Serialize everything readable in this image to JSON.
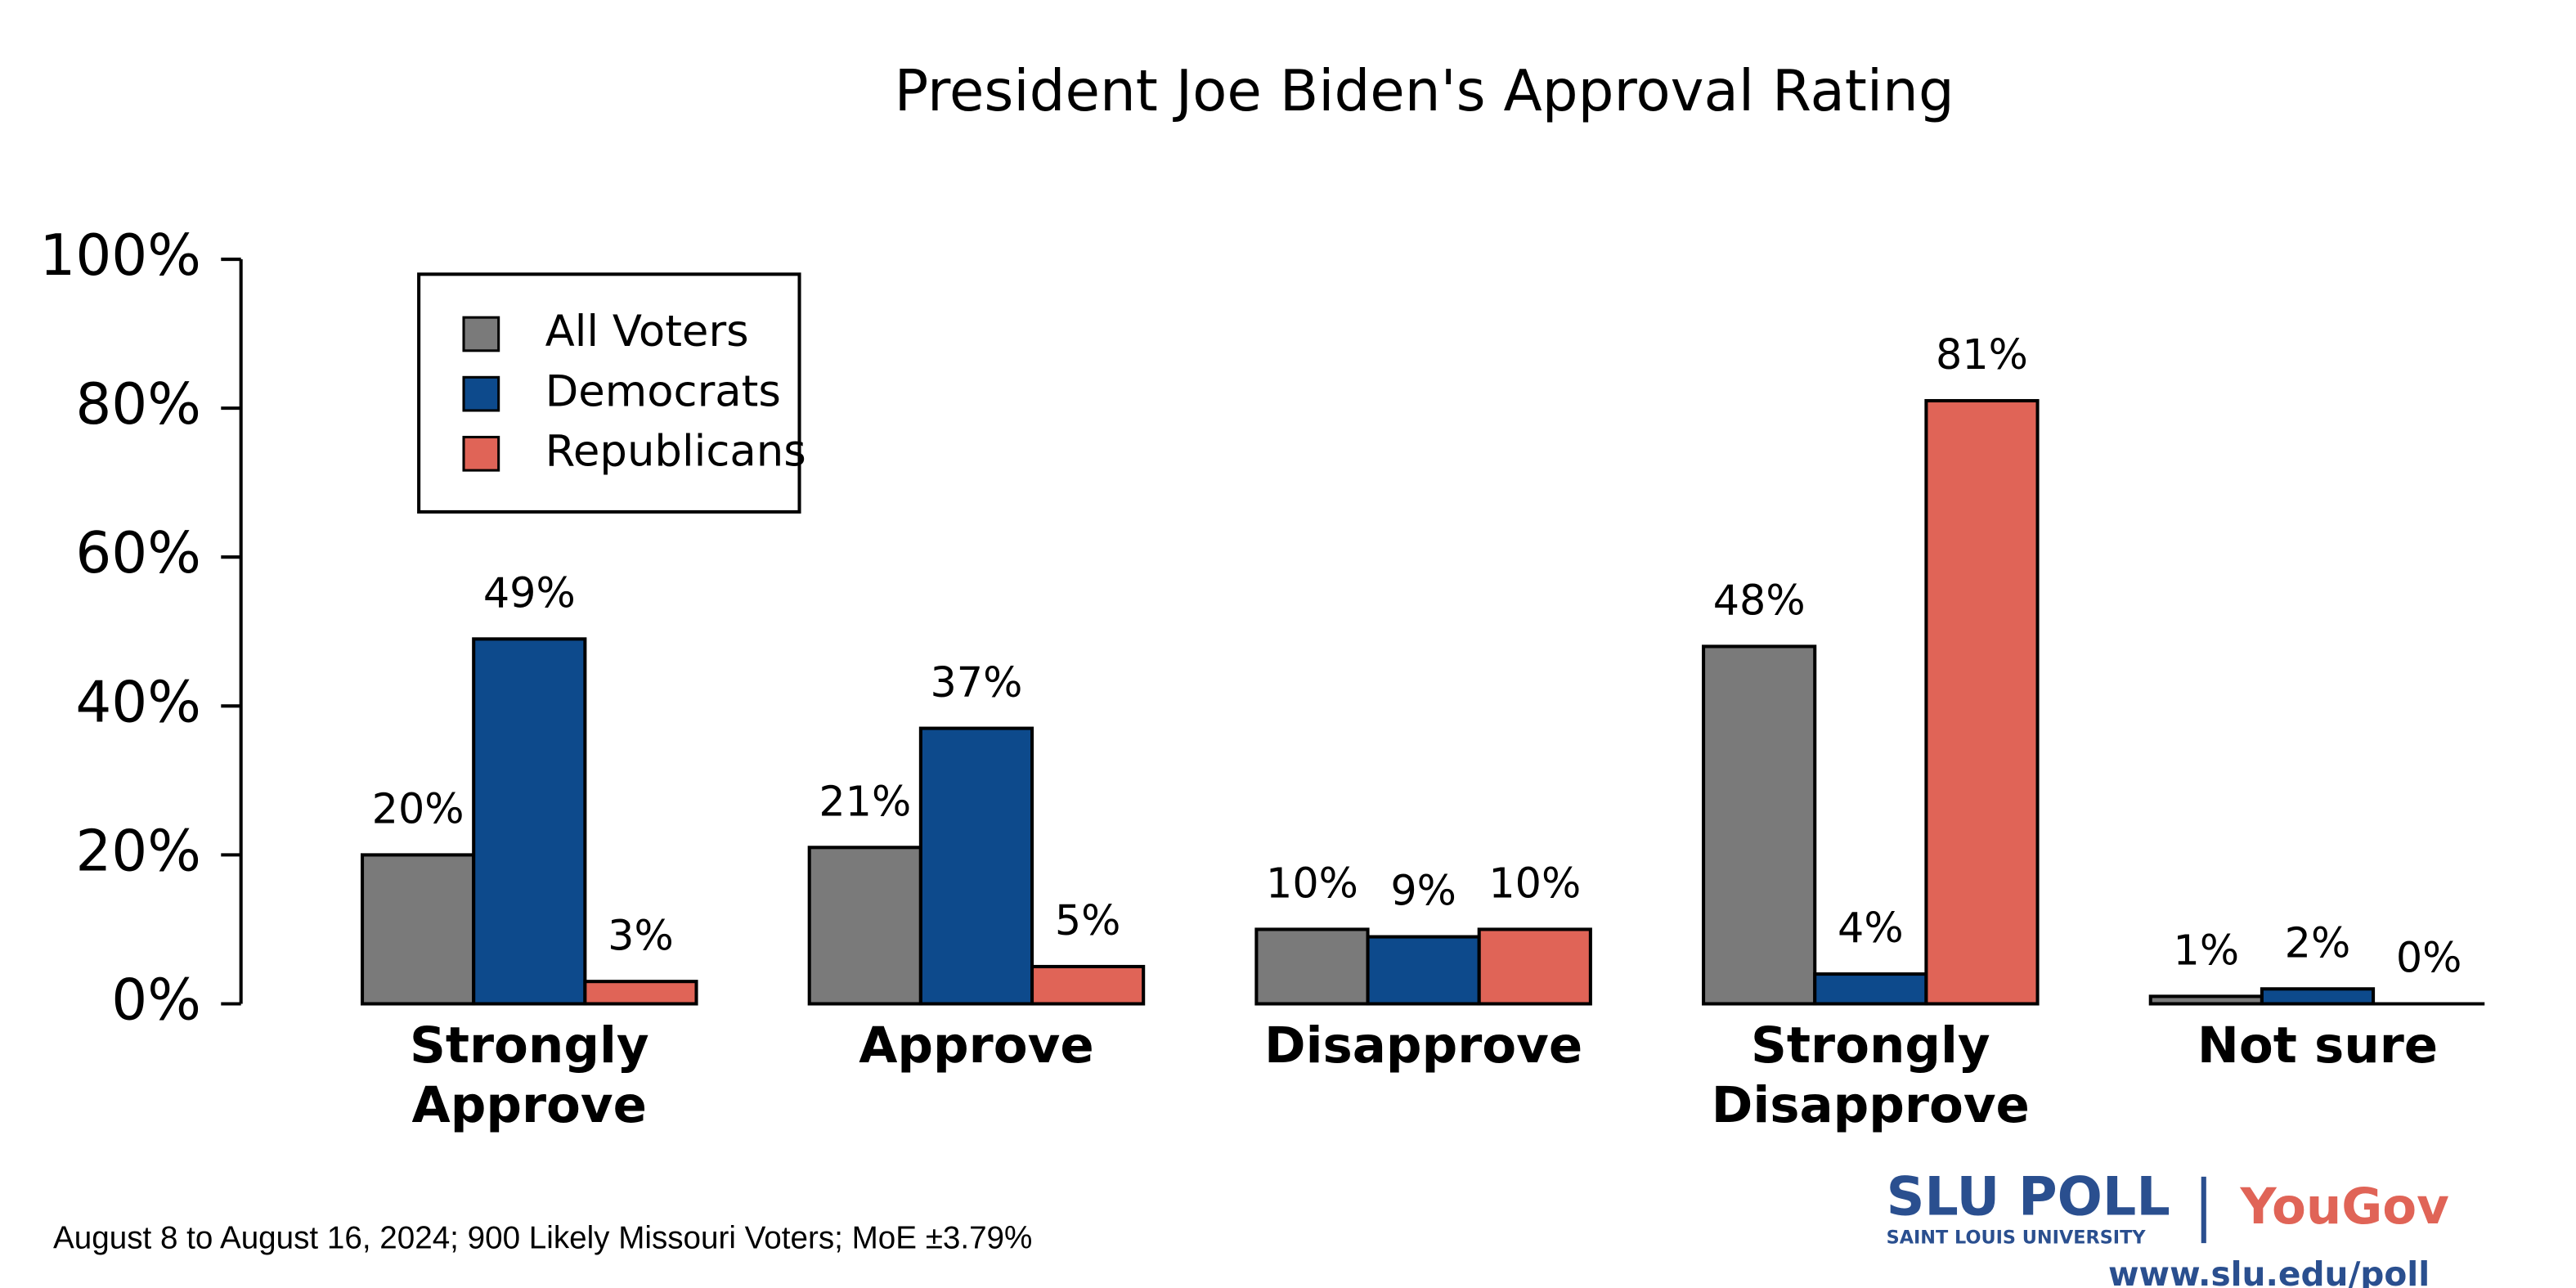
{
  "chart_data": {
    "type": "bar",
    "title": "President Joe Biden's Approval Rating",
    "categories": [
      [
        "Strongly",
        "Approve"
      ],
      [
        "Approve"
      ],
      [
        "Disapprove"
      ],
      [
        "Strongly",
        "Disapprove"
      ],
      [
        "Not sure"
      ]
    ],
    "series": [
      {
        "name": "All Voters",
        "color": "#7a7a7a",
        "values": [
          20,
          21,
          10,
          48,
          1
        ],
        "value_labels": [
          "20%",
          "21%",
          "10%",
          "48%",
          "1%"
        ]
      },
      {
        "name": "Democrats",
        "color": "#0d4a8c",
        "values": [
          49,
          37,
          9,
          4,
          2
        ],
        "value_labels": [
          "49%",
          "37%",
          "9%",
          "4%",
          "2%"
        ]
      },
      {
        "name": "Republicans",
        "color": "#e06457",
        "values": [
          3,
          5,
          10,
          81,
          0
        ],
        "value_labels": [
          "3%",
          "5%",
          "10%",
          "81%",
          "0%"
        ]
      }
    ],
    "ylim": [
      0,
      100
    ],
    "yticks": [
      {
        "value": 0,
        "label": "0%"
      },
      {
        "value": 20,
        "label": "20%"
      },
      {
        "value": 40,
        "label": "40%"
      },
      {
        "value": 60,
        "label": "60%"
      },
      {
        "value": 80,
        "label": "80%"
      },
      {
        "value": 100,
        "label": "100%"
      }
    ],
    "legend": "top-left",
    "note": "August 8 to August 16, 2024; 900 Likely Missouri Voters; MoE ±3.79%",
    "logo": {
      "brand": "SLU POLL",
      "institution": "SAINT LOUIS UNIVERSITY",
      "partner": "YouGov",
      "url": "www.slu.edu/poll"
    }
  }
}
